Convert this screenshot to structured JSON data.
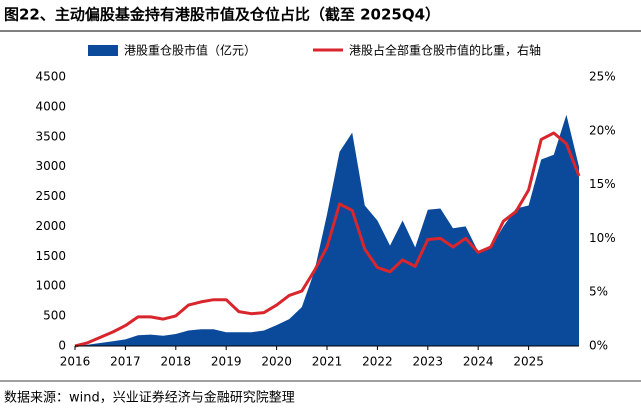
{
  "chart_data": {
    "type": "area-line",
    "title": "图22、主动偏股基金持有港股市值及仓位占比（截至 2025Q4）",
    "source": "数据来源：wind，兴业证券经济与金融研究院整理",
    "x": [
      2016,
      2016.25,
      2016.5,
      2016.75,
      2017,
      2017.25,
      2017.5,
      2017.75,
      2018,
      2018.25,
      2018.5,
      2018.75,
      2019,
      2019.25,
      2019.5,
      2019.75,
      2020,
      2020.25,
      2020.5,
      2020.75,
      2021,
      2021.25,
      2021.5,
      2021.75,
      2022,
      2022.25,
      2022.5,
      2022.75,
      2023,
      2023.25,
      2023.5,
      2023.75,
      2024,
      2024.25,
      2024.5,
      2024.75,
      2025,
      2025.25,
      2025.5,
      2025.75,
      2026
    ],
    "series": [
      {
        "name": "港股重仓股市值（亿元）",
        "color": "#0b4a9b",
        "kind": "area",
        "values": [
          0,
          20,
          50,
          80,
          110,
          180,
          190,
          170,
          200,
          260,
          280,
          280,
          230,
          230,
          230,
          260,
          350,
          450,
          650,
          1250,
          2200,
          3250,
          3570,
          2350,
          2100,
          1680,
          2100,
          1650,
          2280,
          2300,
          1970,
          2000,
          1580,
          1650,
          2000,
          2300,
          2350,
          3120,
          3200,
          3870,
          3000
        ]
      },
      {
        "name": "港股占全部重仓股市值的比重，右轴",
        "color": "#d9262c",
        "kind": "line",
        "axis": "y2",
        "values": [
          0,
          0.3,
          0.8,
          1.3,
          1.9,
          2.7,
          2.7,
          2.5,
          2.8,
          3.8,
          4.1,
          4.3,
          4.3,
          3.2,
          3.0,
          3.1,
          3.8,
          4.7,
          5.1,
          7.0,
          9.2,
          13.2,
          12.6,
          9.0,
          7.3,
          6.9,
          8.0,
          7.4,
          9.9,
          10.0,
          9.2,
          10.0,
          8.7,
          9.2,
          11.6,
          12.5,
          14.5,
          19.2,
          19.8,
          18.8,
          15.8
        ]
      }
    ],
    "xlim": [
      2016,
      2026
    ],
    "xticks": [
      2016,
      2017,
      2018,
      2019,
      2020,
      2021,
      2022,
      2023,
      2024,
      2025
    ],
    "ylim": [
      0,
      4500
    ],
    "yticks": [
      0,
      500,
      1000,
      1500,
      2000,
      2500,
      3000,
      3500,
      4000,
      4500
    ],
    "y2lim": [
      0,
      25
    ],
    "y2ticks": [
      {
        "value": 0,
        "label": "0%"
      },
      {
        "value": 5,
        "label": "5%"
      },
      {
        "value": 10,
        "label": "10%"
      },
      {
        "value": 15,
        "label": "15%"
      },
      {
        "value": 20,
        "label": "20%"
      },
      {
        "value": 25,
        "label": "25%"
      }
    ]
  }
}
